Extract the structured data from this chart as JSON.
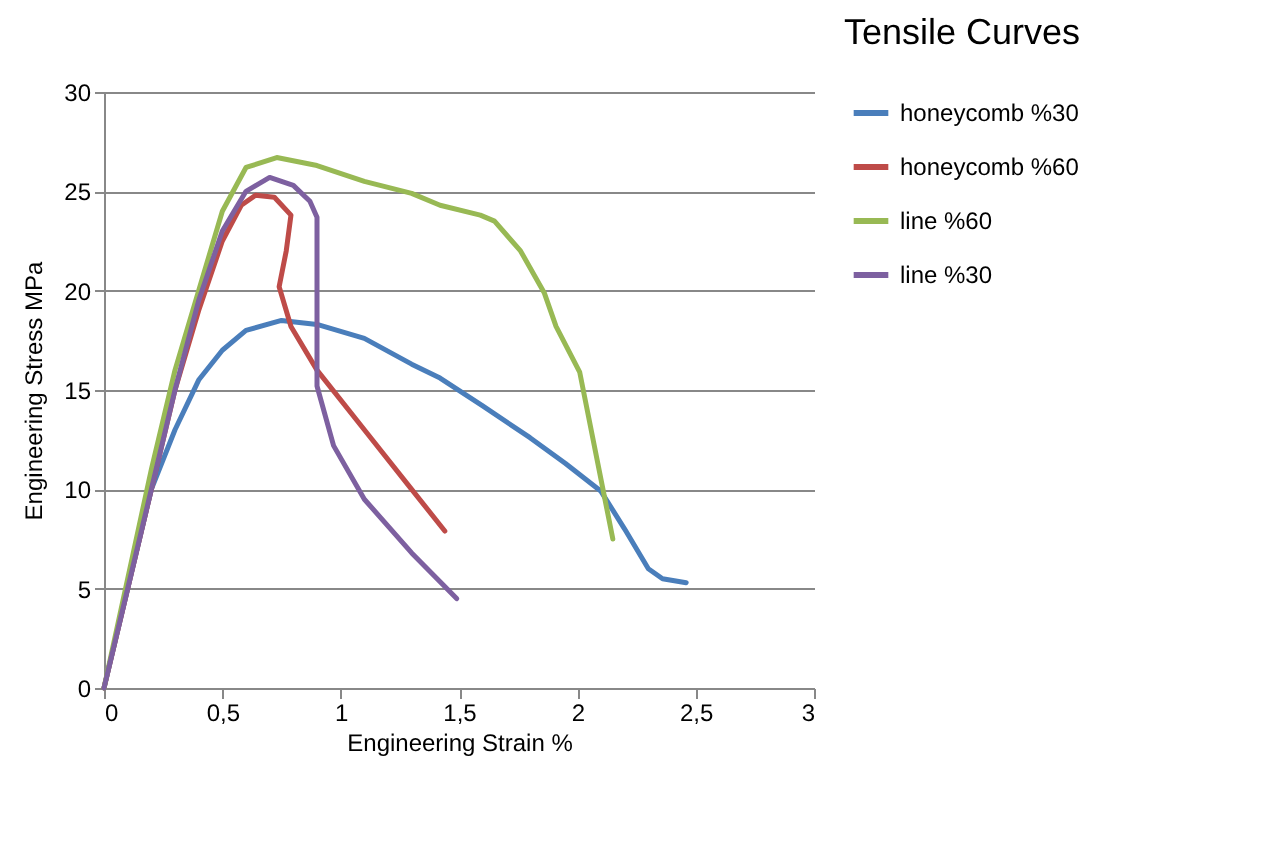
{
  "chart_data": {
    "type": "line",
    "title": "Tensile Curves",
    "xlabel": "Engineering Strain %",
    "ylabel": "Engineering Stress MPa",
    "xlim": [
      0,
      3
    ],
    "ylim": [
      0,
      30
    ],
    "xticks": [
      0,
      {
        "value": 0.5,
        "label": "0,5"
      },
      1,
      {
        "value": 1.5,
        "label": "1,5"
      },
      2,
      {
        "value": 2.5,
        "label": "2,5"
      },
      3
    ],
    "yticks": [
      0,
      5,
      10,
      15,
      20,
      25,
      30
    ],
    "grid": "y",
    "legend": "right",
    "marker": "none",
    "line_style": "solid",
    "series": [
      {
        "name": "honeycomb %30",
        "color": "#4a7ebb",
        "x": [
          0,
          0.1,
          0.2,
          0.3,
          0.4,
          0.5,
          0.6,
          0.75,
          0.9,
          1.1,
          1.3,
          1.42,
          1.6,
          1.8,
          1.95,
          2.1,
          2.2,
          2.3,
          2.36,
          2.46
        ],
        "values": [
          0,
          5,
          10,
          13,
          15.5,
          17,
          18,
          18.5,
          18.3,
          17.6,
          16.3,
          15.6,
          14.2,
          12.6,
          11.3,
          9.9,
          8,
          6,
          5.5,
          5.3
        ]
      },
      {
        "name": "honeycomb %60",
        "color": "#be4b48",
        "x": [
          0,
          0.1,
          0.2,
          0.3,
          0.4,
          0.5,
          0.58,
          0.64,
          0.72,
          0.79,
          0.77,
          0.74,
          0.79,
          0.9,
          1.1,
          1.3,
          1.44
        ],
        "values": [
          0,
          5,
          10,
          15,
          19,
          22.5,
          24.3,
          24.8,
          24.7,
          23.8,
          22,
          20.2,
          18.2,
          16,
          13,
          10,
          7.9
        ]
      },
      {
        "name": "line %60",
        "color": "#98b954",
        "x": [
          0,
          0.1,
          0.2,
          0.3,
          0.4,
          0.5,
          0.6,
          0.73,
          0.9,
          1.1,
          1.3,
          1.42,
          1.59,
          1.65,
          1.76,
          1.86,
          1.91,
          2.01,
          2.15
        ],
        "values": [
          0,
          5.5,
          11,
          16,
          20,
          24,
          26.2,
          26.7,
          26.3,
          25.5,
          24.9,
          24.3,
          23.8,
          23.5,
          22,
          19.9,
          18.2,
          15.9,
          7.5
        ]
      },
      {
        "name": "line %30",
        "color": "#7d60a0",
        "x": [
          0,
          0.1,
          0.2,
          0.3,
          0.4,
          0.5,
          0.6,
          0.7,
          0.8,
          0.87,
          0.9,
          0.9,
          0.9,
          0.97,
          1.1,
          1.3,
          1.49
        ],
        "values": [
          0,
          5,
          10,
          15,
          19.5,
          23,
          25,
          25.7,
          25.3,
          24.5,
          23.7,
          19,
          15.2,
          12.2,
          9.5,
          6.8,
          4.5
        ]
      }
    ]
  }
}
